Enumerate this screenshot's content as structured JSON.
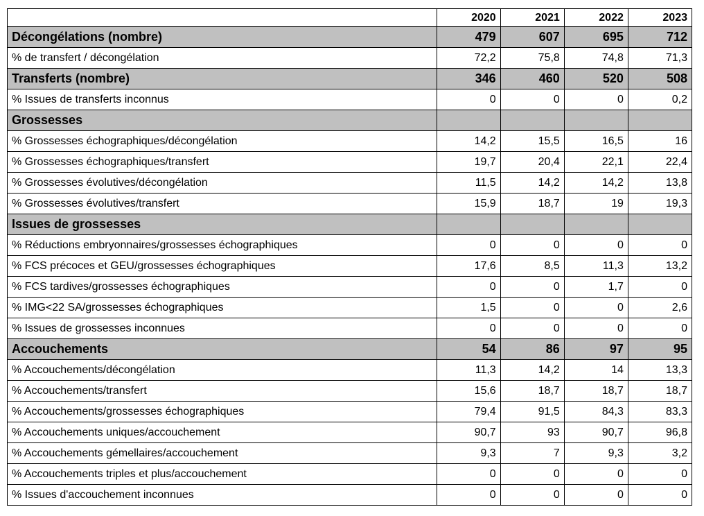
{
  "table": {
    "columns": [
      "2020",
      "2021",
      "2022",
      "2023"
    ],
    "rows": [
      {
        "label": "Décongélations (nombre)",
        "section": true,
        "values": [
          "479",
          "607",
          "695",
          "712"
        ]
      },
      {
        "label": "% de transfert / décongélation",
        "values": [
          "72,2",
          "75,8",
          "74,8",
          "71,3"
        ]
      },
      {
        "label": "Transferts (nombre)",
        "section": true,
        "values": [
          "346",
          "460",
          "520",
          "508"
        ]
      },
      {
        "label": "% Issues de transferts inconnus",
        "values": [
          "0",
          "0",
          "0",
          "0,2"
        ]
      },
      {
        "label": "Grossesses",
        "section": true,
        "values": []
      },
      {
        "label": "% Grossesses échographiques/décongélation",
        "values": [
          "14,2",
          "15,5",
          "16,5",
          "16"
        ]
      },
      {
        "label": "% Grossesses échographiques/transfert",
        "values": [
          "19,7",
          "20,4",
          "22,1",
          "22,4"
        ]
      },
      {
        "label": "% Grossesses évolutives/décongélation",
        "values": [
          "11,5",
          "14,2",
          "14,2",
          "13,8"
        ]
      },
      {
        "label": "% Grossesses évolutives/transfert",
        "values": [
          "15,9",
          "18,7",
          "19",
          "19,3"
        ]
      },
      {
        "label": "Issues de grossesses",
        "section": true,
        "values": []
      },
      {
        "label": "% Réductions embryonnaires/grossesses échographiques",
        "values": [
          "0",
          "0",
          "0",
          "0"
        ]
      },
      {
        "label": "% FCS précoces et GEU/grossesses échographiques",
        "values": [
          "17,6",
          "8,5",
          "11,3",
          "13,2"
        ]
      },
      {
        "label": "% FCS tardives/grossesses échographiques",
        "values": [
          "0",
          "0",
          "1,7",
          "0"
        ]
      },
      {
        "label": "% IMG<22 SA/grossesses échographiques",
        "values": [
          "1,5",
          "0",
          "0",
          "2,6"
        ]
      },
      {
        "label": "% Issues de grossesses inconnues",
        "values": [
          "0",
          "0",
          "0",
          "0"
        ]
      },
      {
        "label": "Accouchements",
        "section": true,
        "values": [
          "54",
          "86",
          "97",
          "95"
        ]
      },
      {
        "label": "% Accouchements/décongélation",
        "values": [
          "11,3",
          "14,2",
          "14",
          "13,3"
        ]
      },
      {
        "label": "% Accouchements/transfert",
        "values": [
          "15,6",
          "18,7",
          "18,7",
          "18,7"
        ]
      },
      {
        "label": "% Accouchements/grossesses échographiques",
        "values": [
          "79,4",
          "91,5",
          "84,3",
          "83,3"
        ]
      },
      {
        "label": "% Accouchements uniques/accouchement",
        "values": [
          "90,7",
          "93",
          "90,7",
          "96,8"
        ]
      },
      {
        "label": "% Accouchements gémellaires/accouchement",
        "values": [
          "9,3",
          "7",
          "9,3",
          "3,2"
        ]
      },
      {
        "label": "% Accouchements triples et plus/accouchement",
        "values": [
          "0",
          "0",
          "0",
          "0"
        ]
      },
      {
        "label": "% Issues d'accouchement inconnues",
        "values": [
          "0",
          "0",
          "0",
          "0"
        ]
      }
    ]
  }
}
